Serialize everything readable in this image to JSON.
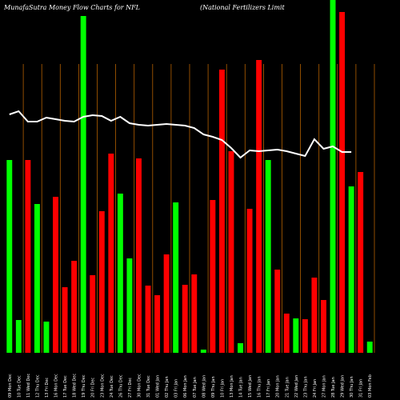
{
  "chart_data": {
    "type": "bar",
    "title": "MunafaSutra  Money Flow  Charts for  NFL",
    "subtitle": "(National Fertilizers Limit",
    "categories": [
      "09 Mon Dec",
      "10 Tue Dec",
      "11 Wed Dec",
      "12 Thu Dec",
      "13 Fri Dec",
      "16 Mon Dec",
      "17 Tue Dec",
      "18 Wed Dec",
      "19 Thu Dec",
      "20 Fri Dec",
      "23 Mon Dec",
      "24 Tue Dec",
      "26 Thu Dec",
      "27 Fri Dec",
      "30 Mon Dec",
      "31 Tue Dec",
      "01 Wed Jan",
      "02 Thu Jan",
      "03 Fri Jan",
      "06 Mon Jan",
      "07 Tue Jan",
      "08 Wed Jan",
      "09 Thu Jan",
      "10 Fri Jan",
      "13 Mon Jan",
      "14 Tue Jan",
      "15 Wed Jan",
      "16 Thu Jan",
      "17 Fri Jan",
      "20 Mon Jan",
      "21 Tue Jan",
      "22 Wed Jan",
      "23 Thu Jan",
      "24 Fri Jan",
      "27 Mon Jan",
      "28 Tue Jan",
      "29 Wed Jan",
      "30 Thu Jan",
      "31 Fri Jan",
      "03 Mon Feb"
    ],
    "series": [
      {
        "type": "bar",
        "values": [
          241,
          41,
          241,
          186,
          39,
          195,
          82,
          115,
          421,
          97,
          177,
          249,
          199,
          118,
          243,
          84,
          72,
          123,
          188,
          85,
          98,
          4,
          191,
          354,
          252,
          12,
          180,
          366,
          241,
          104,
          49,
          43,
          42,
          94,
          66,
          441,
          426,
          208,
          226,
          14
        ],
        "colors": [
          "#00ff00",
          "#00ff00",
          "#ff0000",
          "#00ff00",
          "#00ff00",
          "#ff0000",
          "#ff0000",
          "#ff0000",
          "#00ff00",
          "#ff0000",
          "#ff0000",
          "#ff0000",
          "#00ff00",
          "#00ff00",
          "#ff0000",
          "#ff0000",
          "#ff0000",
          "#ff0000",
          "#00ff00",
          "#ff0000",
          "#ff0000",
          "#00ff00",
          "#ff0000",
          "#ff0000",
          "#ff0000",
          "#00ff00",
          "#ff0000",
          "#ff0000",
          "#00ff00",
          "#ff0000",
          "#ff0000",
          "#00ff00",
          "#ff0000",
          "#ff0000",
          "#ff0000",
          "#00ff00",
          "#ff0000",
          "#00ff00",
          "#ff0000",
          "#00ff00"
        ]
      },
      {
        "type": "line",
        "color": "#ffffff",
        "values": [
          298,
          302,
          289,
          289,
          294,
          292,
          290,
          289,
          295,
          297,
          296,
          290,
          295,
          287,
          285,
          284,
          285,
          286,
          285,
          284,
          281,
          273,
          270,
          266,
          256,
          244,
          253,
          252,
          253,
          254,
          252,
          249,
          246,
          267,
          255,
          258,
          251,
          251,
          null,
          null
        ]
      }
    ],
    "ylim": [
      0,
      441
    ],
    "grid": true,
    "grid_color": "#b35f00"
  }
}
